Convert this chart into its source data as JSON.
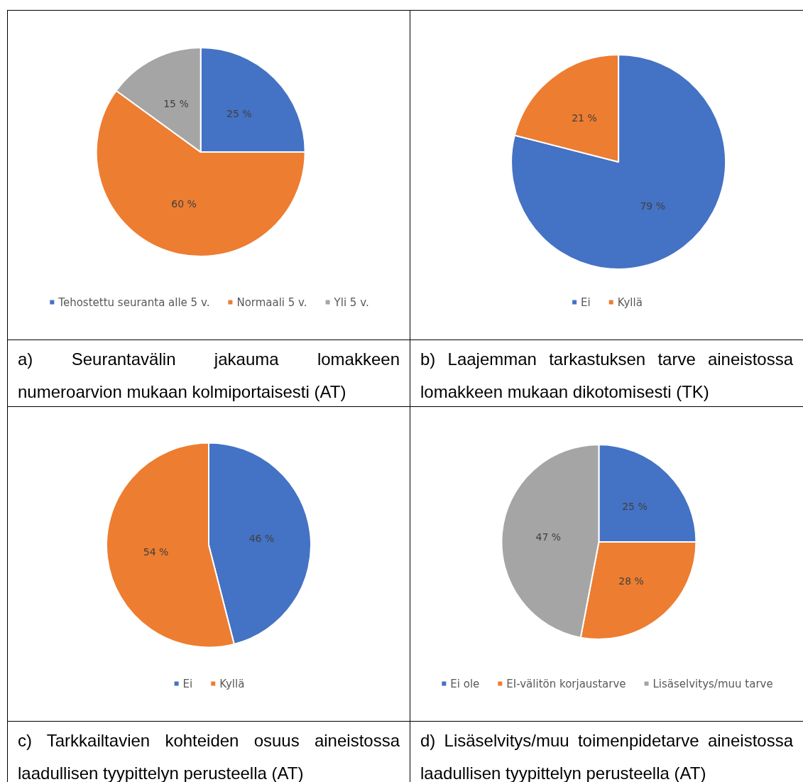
{
  "chart_data": [
    {
      "type": "pie",
      "title": "a) Seurantavälin jakauma lomakkeen numeroarvion mukaan kolmiportaisesti (AT)",
      "categories": [
        "Tehostettu seuranta alle 5 v.",
        "Normaali 5 v.",
        "Yli 5 v."
      ],
      "values": [
        25,
        60,
        15
      ],
      "colors": [
        "#4472c4",
        "#ed7d31",
        "#a5a5a5"
      ],
      "value_labels": [
        "25 %",
        "60 %",
        "15 %"
      ],
      "legend": "bottom"
    },
    {
      "type": "pie",
      "title": "b) Laajemman tarkastuksen tarve aineistossa lomakkeen mukaan dikotomisesti (TK)",
      "categories": [
        "Ei",
        "Kyllä"
      ],
      "values": [
        79,
        21
      ],
      "colors": [
        "#4472c4",
        "#ed7d31"
      ],
      "value_labels": [
        "79 %",
        "21 %"
      ],
      "legend": "bottom"
    },
    {
      "type": "pie",
      "title": "c) Tarkkailtavien kohteiden osuus aineistossa laadullisen tyypittelyn perusteella (AT)",
      "categories": [
        "Ei",
        "Kyllä"
      ],
      "values": [
        46,
        54
      ],
      "colors": [
        "#4472c4",
        "#ed7d31"
      ],
      "value_labels": [
        "46 %",
        "54 %"
      ],
      "legend": "bottom"
    },
    {
      "type": "pie",
      "title": "d) Lisäselvitys/muu toimenpidetarve aineistossa laadullisen tyypittelyn perusteella (AT)",
      "categories": [
        "Ei ole",
        "EI-välitön korjaustarve",
        "Lisäselvitys/muu tarve"
      ],
      "values": [
        25,
        28,
        47
      ],
      "colors": [
        "#4472c4",
        "#ed7d31",
        "#a5a5a5"
      ],
      "value_labels": [
        "25 %",
        "28 %",
        "47 %"
      ],
      "legend": "bottom"
    }
  ]
}
